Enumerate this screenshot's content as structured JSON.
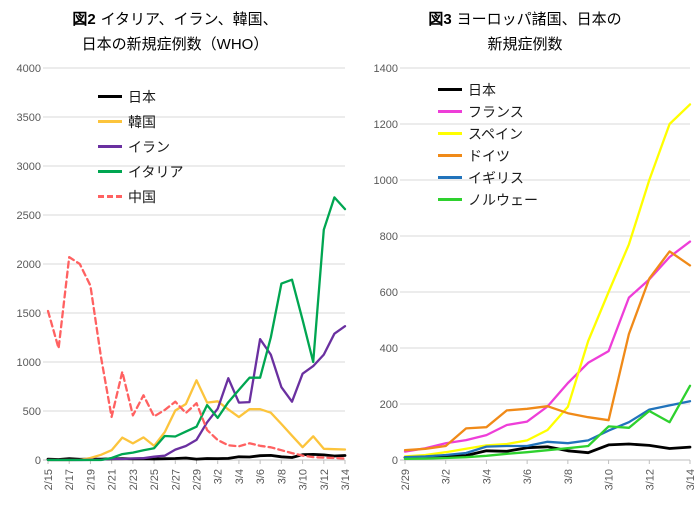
{
  "chart_data": [
    {
      "type": "line",
      "title": {
        "prefix": "図2",
        "line1": "イタリア、イラン、韓国、",
        "line2": "日本の新規症例数（WHO）"
      },
      "x_labels": [
        "2/15",
        "2/16",
        "2/17",
        "2/18",
        "2/19",
        "2/20",
        "2/21",
        "2/22",
        "2/23",
        "2/24",
        "2/25",
        "2/26",
        "2/27",
        "2/28",
        "2/29",
        "3/1",
        "3/2",
        "3/3",
        "3/4",
        "3/5",
        "3/6",
        "3/7",
        "3/8",
        "3/9",
        "3/10",
        "3/11",
        "3/12",
        "3/13",
        "3/14"
      ],
      "x_tick_every": 2,
      "ylim": [
        0,
        4000
      ],
      "y_ticks": [
        0,
        500,
        1000,
        1500,
        2000,
        2500,
        3000,
        3500,
        4000
      ],
      "grid": true,
      "legend_position": "inside-top-left",
      "series": [
        {
          "name": "日本",
          "color": "#000000",
          "dash": false,
          "width": 2.8,
          "values": [
            8,
            5,
            13,
            7,
            9,
            9,
            12,
            13,
            12,
            13,
            10,
            13,
            15,
            20,
            9,
            15,
            14,
            16,
            33,
            31,
            44,
            47,
            33,
            26,
            54,
            57,
            52,
            41,
            46
          ]
        },
        {
          "name": "韓国",
          "color": "#fcc43c",
          "dash": false,
          "values": [
            0,
            0,
            0,
            1,
            20,
            53,
            100,
            229,
            169,
            231,
            144,
            284,
            505,
            571,
            813,
            586,
            599,
            516,
            438,
            518,
            518,
            483,
            367,
            248,
            131,
            242,
            114,
            110,
            107
          ]
        },
        {
          "name": "イラン",
          "color": "#6a30a0",
          "dash": false,
          "values": [
            0,
            0,
            0,
            0,
            2,
            3,
            13,
            10,
            15,
            18,
            34,
            44,
            106,
            143,
            205,
            385,
            523,
            835,
            586,
            591,
            1234,
            1076,
            743,
            595,
            881,
            958,
            1075,
            1289,
            1365
          ]
        },
        {
          "name": "イタリア",
          "color": "#00a651",
          "dash": false,
          "values": [
            0,
            0,
            0,
            0,
            0,
            0,
            20,
            60,
            75,
            100,
            120,
            245,
            240,
            290,
            340,
            560,
            430,
            590,
            715,
            840,
            840,
            1250,
            1800,
            1840,
            1430,
            1000,
            2350,
            2680,
            2560
          ]
        },
        {
          "name": "中国",
          "color": "#ff6161",
          "dash": true,
          "values": [
            1520,
            1140,
            2070,
            2000,
            1780,
            1050,
            440,
            900,
            455,
            660,
            445,
            510,
            595,
            480,
            580,
            306,
            204,
            150,
            140,
            170,
            145,
            130,
            100,
            70,
            45,
            30,
            25,
            20,
            15
          ]
        }
      ]
    },
    {
      "type": "line",
      "title": {
        "prefix": "図3",
        "line1": "ヨーロッパ諸国、日本の",
        "line2": "新規症例数"
      },
      "x_labels": [
        "2/29",
        "3/1",
        "3/2",
        "3/3",
        "3/4",
        "3/5",
        "3/6",
        "3/7",
        "3/8",
        "3/9",
        "3/10",
        "3/11",
        "3/12",
        "3/13",
        "3/14"
      ],
      "x_tick_every": 2,
      "ylim": [
        0,
        1400
      ],
      "y_ticks": [
        0,
        200,
        400,
        600,
        800,
        1000,
        1200,
        1400
      ],
      "grid": true,
      "legend_position": "inside-top-left",
      "series": [
        {
          "name": "日本",
          "color": "#000000",
          "dash": false,
          "width": 2.8,
          "values": [
            9,
            15,
            14,
            16,
            33,
            31,
            44,
            47,
            33,
            26,
            54,
            57,
            52,
            41,
            46
          ]
        },
        {
          "name": "フランス",
          "color": "#ee3ed8",
          "dash": false,
          "values": [
            30,
            42,
            60,
            71,
            89,
            125,
            137,
            191,
            275,
            347,
            389,
            580,
            645,
            725,
            780
          ]
        },
        {
          "name": "スペイン",
          "color": "#ffff00",
          "dash": false,
          "values": [
            13,
            18,
            28,
            40,
            52,
            57,
            70,
            107,
            190,
            425,
            600,
            770,
            1000,
            1200,
            1270
          ]
        },
        {
          "name": "ドイツ",
          "color": "#f08a18",
          "dash": false,
          "values": [
            35,
            40,
            50,
            113,
            117,
            177,
            183,
            192,
            167,
            153,
            142,
            450,
            648,
            745,
            695
          ]
        },
        {
          "name": "イギリス",
          "color": "#2173bb",
          "dash": false,
          "values": [
            10,
            13,
            18,
            25,
            48,
            50,
            50,
            65,
            60,
            70,
            105,
            135,
            180,
            195,
            210
          ]
        },
        {
          "name": "ノルウェー",
          "color": "#2ed12e",
          "dash": false,
          "values": [
            4,
            5,
            7,
            10,
            15,
            22,
            28,
            35,
            42,
            50,
            120,
            115,
            175,
            135,
            265
          ]
        }
      ]
    }
  ]
}
